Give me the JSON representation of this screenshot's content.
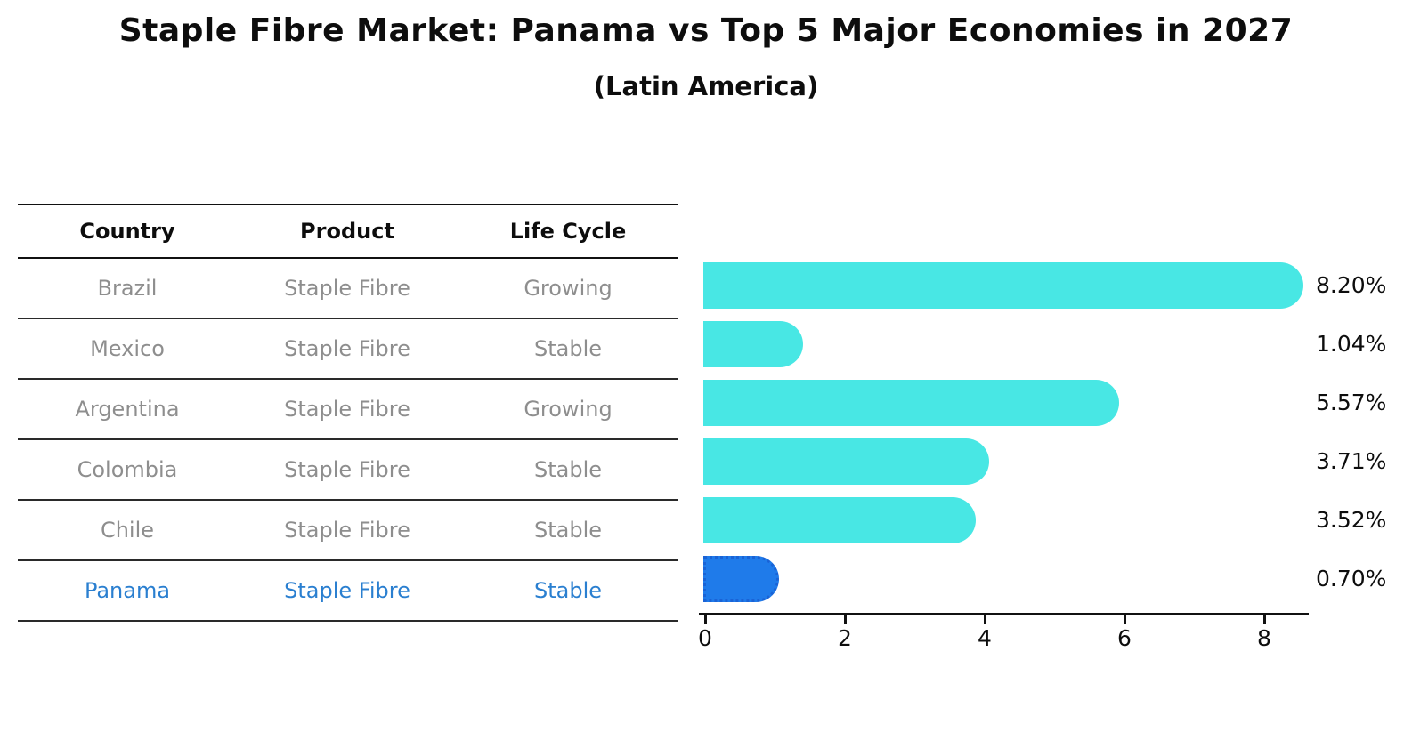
{
  "chart_data": {
    "type": "bar",
    "orientation": "horizontal",
    "title": "Staple Fibre Market: Panama vs Top 5 Major Economies in 2027",
    "subtitle": "(Latin America)",
    "categories": [
      "Brazil",
      "Mexico",
      "Argentina",
      "Colombia",
      "Chile",
      "Panama"
    ],
    "values": [
      8.2,
      1.04,
      5.57,
      3.71,
      3.52,
      0.7
    ],
    "value_labels": [
      "8.20%",
      "1.04%",
      "5.57%",
      "3.71%",
      "3.52%",
      "0.70%"
    ],
    "x_ticks": [
      0,
      2,
      4,
      6,
      8
    ],
    "xlim": [
      0,
      8.6
    ],
    "grid": false,
    "legend": "none",
    "highlight_index": 5,
    "bar_color": "#48e7e4",
    "highlight_bar_color": "#1f7bea",
    "highlight_bar_border_color": "#1a63d6"
  },
  "table": {
    "headers": [
      "Country",
      "Product",
      "Life Cycle"
    ],
    "rows": [
      {
        "country": "Brazil",
        "product": "Staple Fibre",
        "life_cycle": "Growing",
        "highlight": false
      },
      {
        "country": "Mexico",
        "product": "Staple Fibre",
        "life_cycle": "Stable",
        "highlight": false
      },
      {
        "country": "Argentina",
        "product": "Staple Fibre",
        "life_cycle": "Growing",
        "highlight": false
      },
      {
        "country": "Colombia",
        "product": "Staple Fibre",
        "life_cycle": "Stable",
        "highlight": false
      },
      {
        "country": "Chile",
        "product": "Staple Fibre",
        "life_cycle": "Stable",
        "highlight": false
      },
      {
        "country": "Panama",
        "product": "Staple Fibre",
        "life_cycle": "Stable",
        "highlight": true
      }
    ]
  },
  "colors": {
    "row_text": "#8e8e8e",
    "header_text": "#0d0d0d",
    "highlight_text": "#2a7fd0",
    "value_text": "#0d0d0d"
  }
}
